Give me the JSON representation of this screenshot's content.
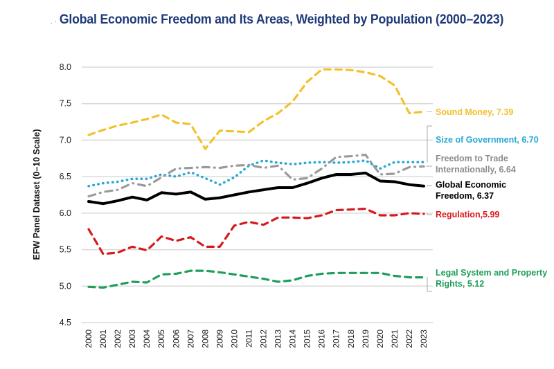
{
  "title_prefix": ". ·",
  "chart_data": {
    "type": "line",
    "title": "Global Economic Freedom and Its Areas, Weighted by Population (2000–2023)",
    "xlabel": "",
    "ylabel": "EFW Panel Dataset (0–10 Scale)",
    "ylim": [
      4.5,
      8.0
    ],
    "yticks": [
      "4.5",
      "5.0",
      "5.5",
      "6.0",
      "6.5",
      "7.0",
      "7.5",
      "8.0"
    ],
    "grid": "horizontal",
    "legend": "direct-labels-right",
    "x": [
      "2000",
      "2001",
      "2002",
      "2003",
      "2004",
      "2005",
      "2006",
      "2007",
      "2008",
      "2009",
      "2010",
      "2011",
      "2012",
      "2013",
      "2014",
      "2015",
      "2016",
      "2017",
      "2018",
      "2019",
      "2020",
      "2021",
      "2022",
      "2023"
    ],
    "series": [
      {
        "name": "Sound Money",
        "label": "Sound Money, 7.39",
        "color": "#f2c12e",
        "style": "dashed",
        "values": [
          7.07,
          7.14,
          7.2,
          7.24,
          7.29,
          7.35,
          7.24,
          7.22,
          6.88,
          7.13,
          7.12,
          7.11,
          7.26,
          7.37,
          7.53,
          7.8,
          7.97,
          7.97,
          7.96,
          7.93,
          7.88,
          7.75,
          7.37,
          7.39
        ]
      },
      {
        "name": "Size of Government",
        "label": "Size of Government, 6.70",
        "color": "#27a9d4",
        "style": "dotted",
        "values": [
          6.37,
          6.41,
          6.43,
          6.47,
          6.47,
          6.53,
          6.5,
          6.56,
          6.48,
          6.39,
          6.49,
          6.65,
          6.72,
          6.69,
          6.67,
          6.69,
          6.7,
          6.69,
          6.7,
          6.72,
          6.61,
          6.7,
          6.7,
          6.7
        ]
      },
      {
        "name": "Freedom to Trade Internationally",
        "label": "Freedom to Trade Internationally, 6.64",
        "label_lines": [
          "Freedom to Trade",
          "Internationally, 6.64"
        ],
        "color": "#9a9a9a",
        "style": "dash-dot",
        "values": [
          6.23,
          6.29,
          6.32,
          6.41,
          6.37,
          6.49,
          6.61,
          6.62,
          6.63,
          6.62,
          6.65,
          6.66,
          6.62,
          6.65,
          6.46,
          6.48,
          6.61,
          6.77,
          6.78,
          6.8,
          6.53,
          6.54,
          6.63,
          6.64
        ]
      },
      {
        "name": "Global Economic Freedom",
        "label": "Global Economic Freedom, 6.37",
        "label_lines": [
          "Global Economic",
          "Freedom, 6.37"
        ],
        "color": "#000000",
        "style": "solid",
        "values": [
          6.16,
          6.13,
          6.17,
          6.22,
          6.18,
          6.28,
          6.26,
          6.29,
          6.19,
          6.21,
          6.25,
          6.29,
          6.32,
          6.35,
          6.35,
          6.41,
          6.48,
          6.53,
          6.53,
          6.55,
          6.44,
          6.43,
          6.39,
          6.37
        ]
      },
      {
        "name": "Regulation",
        "label": "Regulation,5.99",
        "color": "#d7191c",
        "style": "dashed",
        "values": [
          5.78,
          5.44,
          5.46,
          5.54,
          5.49,
          5.68,
          5.62,
          5.67,
          5.54,
          5.54,
          5.83,
          5.88,
          5.84,
          5.94,
          5.94,
          5.93,
          5.97,
          6.04,
          6.05,
          6.06,
          5.97,
          5.97,
          6.0,
          5.99
        ]
      },
      {
        "name": "Legal System and Property Rights",
        "label": "Legal System and Property Rights, 5.12",
        "label_lines": [
          "Legal System and Property",
          "Rights, 5.12"
        ],
        "color": "#1e9e5a",
        "style": "dashed",
        "values": [
          4.99,
          4.98,
          5.02,
          5.06,
          5.05,
          5.16,
          5.17,
          5.21,
          5.21,
          5.19,
          5.16,
          5.13,
          5.1,
          5.06,
          5.08,
          5.14,
          5.17,
          5.18,
          5.18,
          5.18,
          5.18,
          5.14,
          5.12,
          5.12
        ]
      }
    ]
  }
}
